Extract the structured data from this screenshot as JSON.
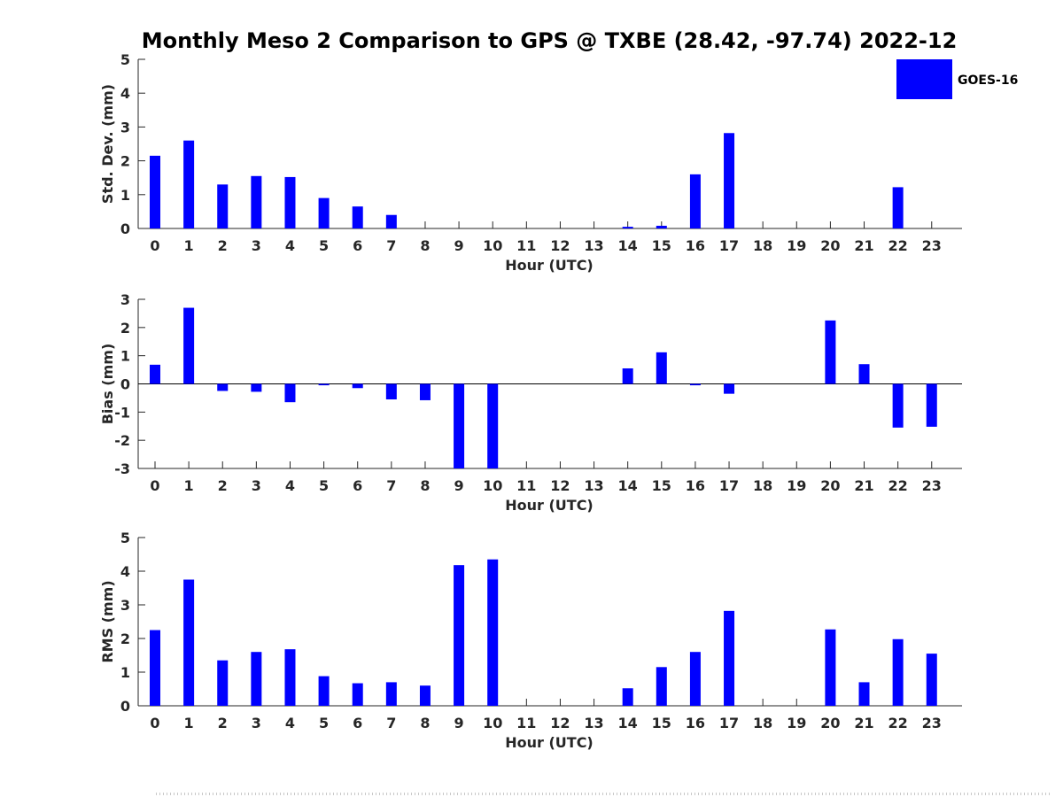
{
  "chart_data": {
    "title": "Monthly Meso 2 Comparison to GPS @ TXBE (28.42, -97.74) 2022-12",
    "legend": {
      "label": "GOES-16",
      "color": "#0000ff",
      "placement": "top-right"
    },
    "panels": [
      {
        "type": "bar",
        "ylabel": "Std. Dev. (mm)",
        "xlabel": "Hour (UTC)",
        "ylim": [
          0,
          5
        ],
        "yticks": [
          0,
          1,
          2,
          3,
          4,
          5
        ],
        "categories": [
          "0",
          "1",
          "2",
          "3",
          "4",
          "5",
          "6",
          "7",
          "8",
          "9",
          "10",
          "11",
          "12",
          "13",
          "14",
          "15",
          "16",
          "17",
          "18",
          "19",
          "20",
          "21",
          "22",
          "23"
        ],
        "series": [
          {
            "name": "GOES-16",
            "values": [
              2.15,
              2.6,
              1.3,
              1.55,
              1.52,
              0.9,
              0.65,
              0.4,
              0,
              0,
              0,
              0,
              0,
              0,
              0.05,
              0.08,
              1.6,
              2.82,
              0,
              0,
              0,
              0,
              1.22,
              0
            ]
          }
        ]
      },
      {
        "type": "bar",
        "ylabel": "Bias (mm)",
        "xlabel": "Hour (UTC)",
        "ylim": [
          -3,
          3
        ],
        "yticks": [
          -3,
          -2,
          -1,
          0,
          1,
          2,
          3
        ],
        "categories": [
          "0",
          "1",
          "2",
          "3",
          "4",
          "5",
          "6",
          "7",
          "8",
          "9",
          "10",
          "11",
          "12",
          "13",
          "14",
          "15",
          "16",
          "17",
          "18",
          "19",
          "20",
          "21",
          "22",
          "23"
        ],
        "series": [
          {
            "name": "GOES-16",
            "values": [
              0.68,
              2.7,
              -0.25,
              -0.28,
              -0.65,
              -0.05,
              -0.15,
              -0.55,
              -0.58,
              -3.0,
              -3.0,
              0,
              0,
              0,
              0.55,
              1.12,
              -0.05,
              -0.35,
              0,
              0,
              2.25,
              0.7,
              -1.55,
              -1.52
            ]
          }
        ]
      },
      {
        "type": "bar",
        "ylabel": "RMS (mm)",
        "xlabel": "Hour (UTC)",
        "ylim": [
          0,
          5
        ],
        "yticks": [
          0,
          1,
          2,
          3,
          4,
          5
        ],
        "categories": [
          "0",
          "1",
          "2",
          "3",
          "4",
          "5",
          "6",
          "7",
          "8",
          "9",
          "10",
          "11",
          "12",
          "13",
          "14",
          "15",
          "16",
          "17",
          "18",
          "19",
          "20",
          "21",
          "22",
          "23"
        ],
        "series": [
          {
            "name": "GOES-16",
            "values": [
              2.25,
              3.75,
              1.35,
              1.6,
              1.68,
              0.88,
              0.67,
              0.7,
              0.6,
              4.18,
              4.35,
              0,
              0,
              0,
              0.52,
              1.15,
              1.6,
              2.82,
              0,
              0,
              2.27,
              0.7,
              1.98,
              1.55
            ]
          }
        ]
      }
    ],
    "grid": false
  }
}
